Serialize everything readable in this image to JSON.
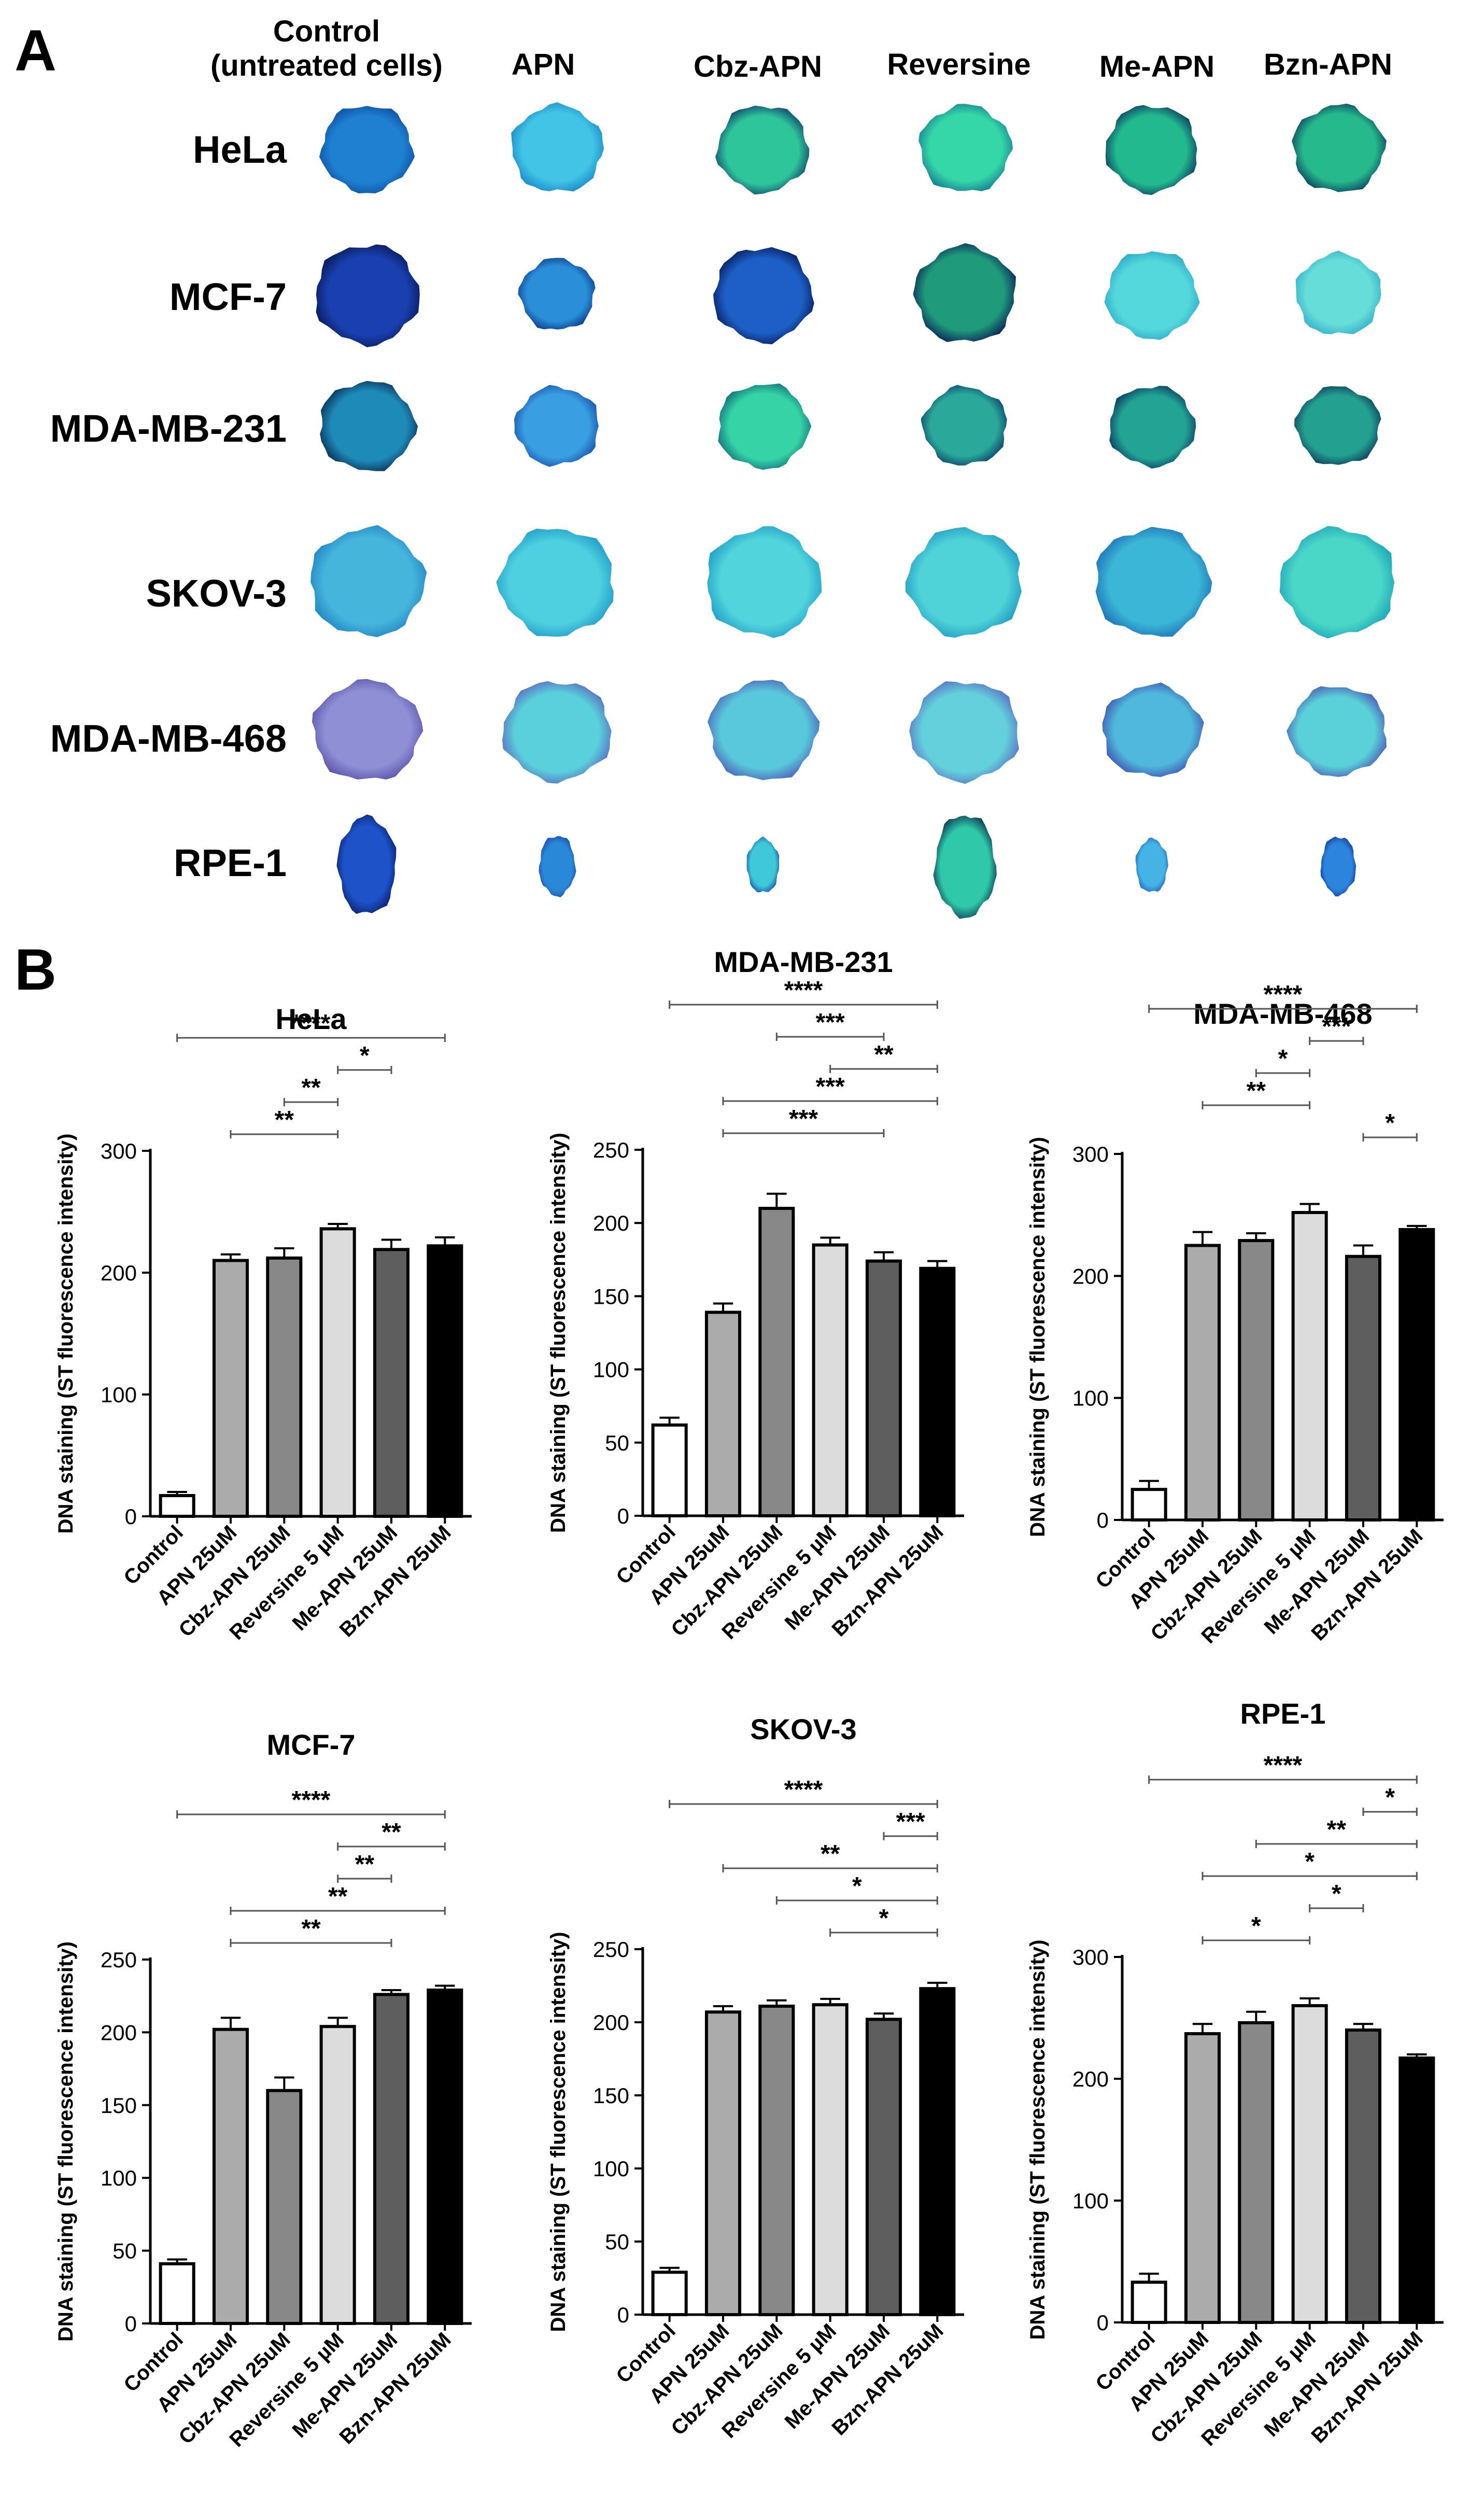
{
  "panel_a": {
    "letter": "A",
    "columns": [
      {
        "id": "control",
        "label_line1": "Control",
        "label_line2": "(untreated cells)"
      },
      {
        "id": "apn",
        "label_line1": "APN",
        "label_line2": ""
      },
      {
        "id": "cbz",
        "label_line1": "Cbz-APN",
        "label_line2": ""
      },
      {
        "id": "rev",
        "label_line1": "Reversine",
        "label_line2": ""
      },
      {
        "id": "me",
        "label_line1": "Me-APN",
        "label_line2": ""
      },
      {
        "id": "bzn",
        "label_line1": "Bzn-APN",
        "label_line2": ""
      }
    ],
    "rows": [
      {
        "label": "HeLa",
        "colors": [
          [
            "#1f7fd0",
            "#0d4fa0"
          ],
          [
            "#41c4e6",
            "#1a86c8"
          ],
          [
            "#2fc59a",
            "#0d3f6b"
          ],
          [
            "#35d6a8",
            "#157a92"
          ],
          [
            "#22b98e",
            "#0b3860"
          ],
          [
            "#25b98c",
            "#0b3a5c"
          ]
        ]
      },
      {
        "label": "MCF-7",
        "colors": [
          [
            "#1a3fb0",
            "#071a55"
          ],
          [
            "#2a8fd8",
            "#0c3b8a"
          ],
          [
            "#1d5fc6",
            "#061a58"
          ],
          [
            "#1f9a7a",
            "#071d57"
          ],
          [
            "#55d8dc",
            "#2aa6c8"
          ],
          [
            "#66ddd8",
            "#34b0cc"
          ]
        ]
      },
      {
        "label": "MDA-MB-231",
        "colors": [
          [
            "#1e8ab8",
            "#082d55"
          ],
          [
            "#3a9ee2",
            "#1552a8"
          ],
          [
            "#35d3a5",
            "#0e6d7a"
          ],
          [
            "#2aa99a",
            "#0b3d6a"
          ],
          [
            "#22a394",
            "#0b3861"
          ],
          [
            "#24a090",
            "#0b3a5c"
          ]
        ]
      },
      {
        "label": "SKOV-3",
        "colors": [
          [
            "#46b5dc",
            "#1f82c2"
          ],
          [
            "#4ed0e0",
            "#209ac8"
          ],
          [
            "#52d4dc",
            "#1f9cc8"
          ],
          [
            "#4fd2d8",
            "#1e98c2"
          ],
          [
            "#3cb6d6",
            "#1a6fb8"
          ],
          [
            "#4ad7c8",
            "#1ca0b8"
          ]
        ]
      },
      {
        "label": "MDA-MB-468",
        "colors": [
          [
            "#8f8fd6",
            "#5a52a8"
          ],
          [
            "#5ad0dc",
            "#5a68c0"
          ],
          [
            "#5ac8dc",
            "#4b5fb8"
          ],
          [
            "#64d0dc",
            "#5870c4"
          ],
          [
            "#4fb8dc",
            "#3f4fb0"
          ],
          [
            "#5ad0d8",
            "#4b5ab8"
          ]
        ]
      },
      {
        "label": "RPE-1",
        "colors": [
          [
            "#1d52c8",
            "#0a2070"
          ],
          [
            "#2a88d8",
            "#1a4fb0"
          ],
          [
            "#3ec8d8",
            "#1a5ab0"
          ],
          [
            "#2fc8a8",
            "#0b3050"
          ],
          [
            "#45b4e4",
            "#2268c4"
          ],
          [
            "#2d84dc",
            "#113c9e"
          ]
        ]
      }
    ]
  },
  "panel_b": {
    "letter": "B",
    "ylabel": "DNA staining (ST fluorescence intensity)",
    "categories": [
      "Control",
      "APN 25uM",
      "Cbz-APN 25uM",
      "Reversine 5 µM",
      "Me-APN 25uM",
      "Bzn-APN 25uM"
    ],
    "bar_fills": [
      "#ffffff",
      "#ababab",
      "#888888",
      "#dcdcdc",
      "#5e5e5e",
      "#000000"
    ]
  },
  "chart_data": [
    {
      "type": "bar",
      "title": "HeLa",
      "ylabel": "DNA staining (ST fluorescence intensity)",
      "categories": [
        "Control",
        "APN 25uM",
        "Cbz-APN 25uM",
        "Reversine 5 µM",
        "Me-APN 25uM",
        "Bzn-APN 25uM"
      ],
      "values": [
        17,
        210,
        212,
        236,
        219,
        222
      ],
      "errors": [
        3,
        5,
        8,
        4,
        8,
        7
      ],
      "ylim": [
        0,
        300
      ],
      "yticks": [
        0,
        100,
        200,
        300
      ],
      "significance": [
        {
          "from": 0,
          "to": 5,
          "label": "****"
        },
        {
          "from": 3,
          "to": 4,
          "label": "*"
        },
        {
          "from": 2,
          "to": 3,
          "label": "**"
        },
        {
          "from": 1,
          "to": 3,
          "label": "**"
        }
      ]
    },
    {
      "type": "bar",
      "title": "MDA-MB-231",
      "ylabel": "DNA staining (ST fluorescence intensity)",
      "categories": [
        "Control",
        "APN 25uM",
        "Cbz-APN 25uM",
        "Reversine 5 µM",
        "Me-APN 25uM",
        "Bzn-APN 25uM"
      ],
      "values": [
        62,
        139,
        210,
        185,
        174,
        169
      ],
      "errors": [
        5,
        6,
        10,
        5,
        6,
        5
      ],
      "ylim": [
        0,
        250
      ],
      "yticks": [
        0,
        50,
        100,
        150,
        200,
        250
      ],
      "significance": [
        {
          "from": 0,
          "to": 5,
          "label": "****"
        },
        {
          "from": 2,
          "to": 4,
          "label": "***"
        },
        {
          "from": 3,
          "to": 5,
          "label": "**"
        },
        {
          "from": 1,
          "to": 5,
          "label": "***"
        },
        {
          "from": 1,
          "to": 4,
          "label": "***"
        }
      ]
    },
    {
      "type": "bar",
      "title": "MDA-MB-468",
      "ylabel": "DNA staining (ST fluorescence intensity)",
      "categories": [
        "Control",
        "APN 25uM",
        "Cbz-APN 25uM",
        "Reversine 5 µM",
        "Me-APN 25uM",
        "Bzn-APN 25uM"
      ],
      "values": [
        25,
        225,
        229,
        252,
        216,
        238
      ],
      "errors": [
        7,
        11,
        6,
        7,
        9,
        3
      ],
      "ylim": [
        0,
        300
      ],
      "yticks": [
        0,
        100,
        200,
        300
      ],
      "significance": [
        {
          "from": 0,
          "to": 5,
          "label": "****"
        },
        {
          "from": 3,
          "to": 4,
          "label": "***"
        },
        {
          "from": 2,
          "to": 3,
          "label": "*"
        },
        {
          "from": 1,
          "to": 3,
          "label": "**"
        },
        {
          "from": 4,
          "to": 5,
          "label": "*"
        }
      ]
    },
    {
      "type": "bar",
      "title": "MCF-7",
      "ylabel": "DNA staining (ST fluorescence intensity)",
      "categories": [
        "Control",
        "APN 25uM",
        "Cbz-APN 25uM",
        "Reversine 5 µM",
        "Me-APN 25uM",
        "Bzn-APN 25uM"
      ],
      "values": [
        41,
        202,
        160,
        204,
        226,
        229
      ],
      "errors": [
        3,
        8,
        9,
        6,
        3,
        3
      ],
      "ylim": [
        0,
        250
      ],
      "yticks": [
        0,
        50,
        100,
        150,
        200,
        250
      ],
      "significance": [
        {
          "from": 0,
          "to": 5,
          "label": "****"
        },
        {
          "from": 3,
          "to": 5,
          "label": "**"
        },
        {
          "from": 3,
          "to": 4,
          "label": "**"
        },
        {
          "from": 1,
          "to": 5,
          "label": "**"
        },
        {
          "from": 1,
          "to": 4,
          "label": "**"
        }
      ]
    },
    {
      "type": "bar",
      "title": "SKOV-3",
      "ylabel": "DNA staining (ST fluorescence intensity)",
      "categories": [
        "Control",
        "APN 25uM",
        "Cbz-APN 25uM",
        "Reversine 5 µM",
        "Me-APN 25uM",
        "Bzn-APN 25uM"
      ],
      "values": [
        29,
        207,
        211,
        212,
        202,
        223
      ],
      "errors": [
        3,
        4,
        4,
        4,
        4,
        4
      ],
      "ylim": [
        0,
        250
      ],
      "yticks": [
        0,
        50,
        100,
        150,
        200,
        250
      ],
      "significance": [
        {
          "from": 0,
          "to": 5,
          "label": "****"
        },
        {
          "from": 4,
          "to": 5,
          "label": "***"
        },
        {
          "from": 1,
          "to": 5,
          "label": "**"
        },
        {
          "from": 2,
          "to": 5,
          "label": "*"
        },
        {
          "from": 3,
          "to": 5,
          "label": "*"
        }
      ]
    },
    {
      "type": "bar",
      "title": "RPE-1",
      "ylabel": "DNA staining (ST fluorescence intensity)",
      "categories": [
        "Control",
        "APN 25uM",
        "Cbz-APN 25uM",
        "Reversine 5 µM",
        "Me-APN 25uM",
        "Bzn-APN 25uM"
      ],
      "values": [
        33,
        237,
        246,
        260,
        240,
        217
      ],
      "errors": [
        7,
        8,
        9,
        6,
        5,
        3
      ],
      "ylim": [
        0,
        300
      ],
      "yticks": [
        0,
        100,
        200,
        300
      ],
      "significance": [
        {
          "from": 0,
          "to": 5,
          "label": "****"
        },
        {
          "from": 4,
          "to": 5,
          "label": "*"
        },
        {
          "from": 2,
          "to": 5,
          "label": "**"
        },
        {
          "from": 1,
          "to": 5,
          "label": "*"
        },
        {
          "from": 3,
          "to": 4,
          "label": "*"
        },
        {
          "from": 1,
          "to": 3,
          "label": "*"
        }
      ]
    }
  ]
}
